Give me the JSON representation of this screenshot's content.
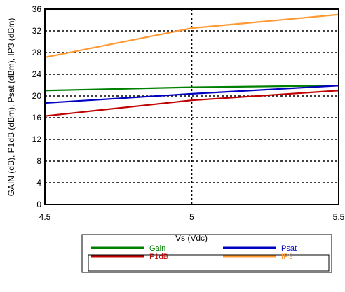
{
  "chart_data": {
    "type": "line",
    "title": "",
    "xlabel": "Vs (Vdc)",
    "ylabel": "GAIN (dB), P1dB (dBm), Psat (dBm), IP3 (dBm)",
    "x": [
      4.5,
      5,
      5.5
    ],
    "xlim": [
      4.5,
      5.5
    ],
    "ylim": [
      0,
      36
    ],
    "xticks": [
      4.5,
      5,
      5.5
    ],
    "yticks": [
      0,
      4,
      8,
      12,
      16,
      20,
      24,
      28,
      32,
      36
    ],
    "xtick_labels": [
      "4.5",
      "5",
      "5.5"
    ],
    "ytick_labels": [
      "0",
      "4",
      "8",
      "12",
      "16",
      "20",
      "24",
      "28",
      "32",
      "36"
    ],
    "grid": true,
    "legend_position": "bottom-center",
    "series": [
      {
        "name": "Gain",
        "color": "#008000",
        "values": [
          21.0,
          21.6,
          21.9
        ]
      },
      {
        "name": "Psat",
        "color": "#0000c0",
        "values": [
          18.7,
          20.4,
          21.9
        ]
      },
      {
        "name": "P1dB",
        "color": "#c00000",
        "values": [
          16.3,
          19.2,
          21.0
        ]
      },
      {
        "name": "IP3",
        "color": "#ff9933",
        "values": [
          27.1,
          32.5,
          35.0
        ]
      }
    ]
  }
}
